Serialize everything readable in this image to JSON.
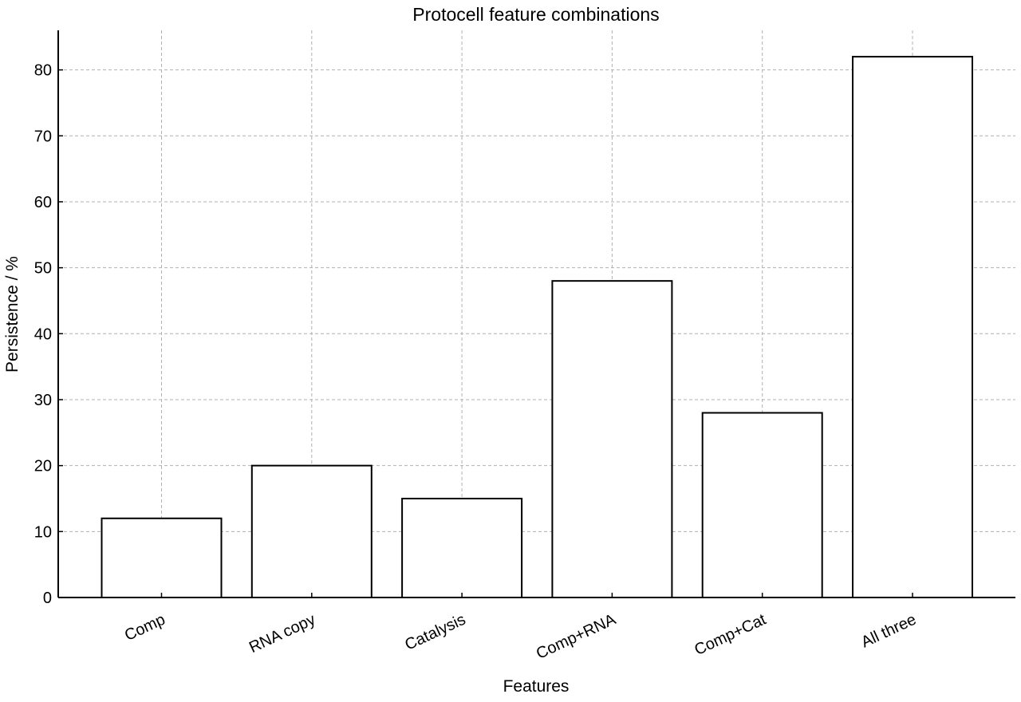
{
  "chart_data": {
    "type": "bar",
    "title": "Protocell feature combinations",
    "xlabel": "Features",
    "ylabel": "Persistence / %",
    "categories": [
      "Comp",
      "RNA copy",
      "Catalysis",
      "Comp+RNA",
      "Comp+Cat",
      "All three"
    ],
    "values": [
      12,
      20,
      15,
      48,
      28,
      82
    ],
    "ylim": [
      0,
      86
    ],
    "yticks": [
      0,
      10,
      20,
      30,
      40,
      50,
      60,
      70,
      80
    ],
    "grid": true,
    "bar_fill": "#ffffff",
    "bar_edge": "#000000"
  }
}
